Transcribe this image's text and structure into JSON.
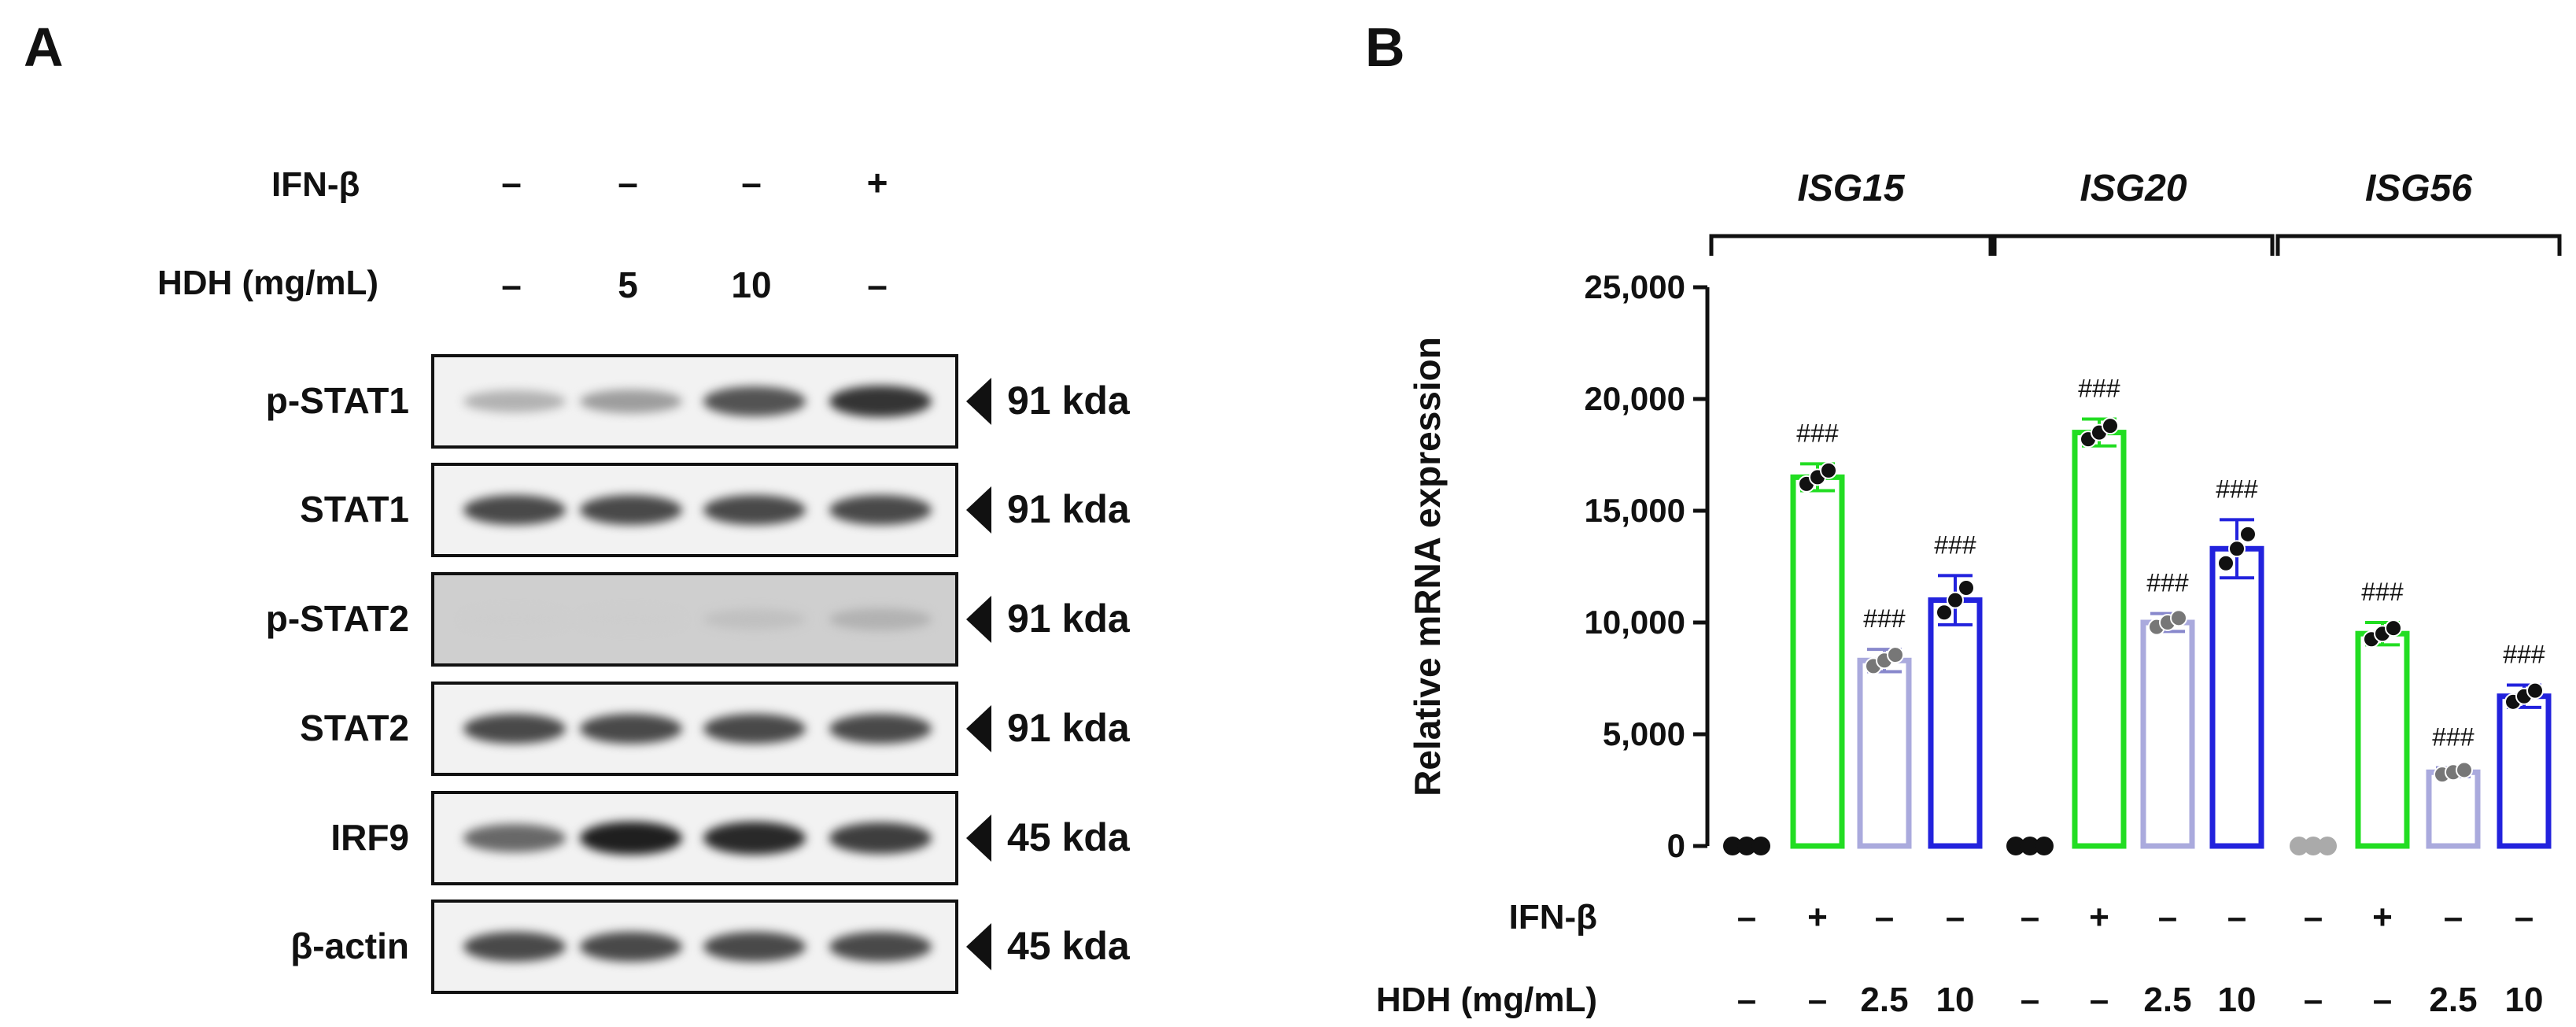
{
  "panel_a": {
    "letter": "A",
    "ifn_label": "IFN-β",
    "ifn_signs": [
      "–",
      "–",
      "–",
      "+"
    ],
    "hdh_label": "HDH (mg/mL)",
    "hdh_values": [
      "–",
      "5",
      "10",
      "–"
    ],
    "rows": [
      {
        "label": "p-STAT1",
        "kda": "91 kda",
        "intensity": [
          0.25,
          0.35,
          0.7,
          0.85
        ]
      },
      {
        "label": "STAT1",
        "kda": "91 kda",
        "intensity": [
          0.75,
          0.75,
          0.75,
          0.75
        ]
      },
      {
        "label": "p-STAT2",
        "kda": "91 kda",
        "intensity": [
          0.12,
          0.12,
          0.18,
          0.25
        ]
      },
      {
        "label": "STAT2",
        "kda": "91 kda",
        "intensity": [
          0.75,
          0.75,
          0.75,
          0.75
        ]
      },
      {
        "label": "IRF9",
        "kda": "45 kda",
        "intensity": [
          0.6,
          0.95,
          0.9,
          0.8
        ]
      },
      {
        "label": "β-actin",
        "kda": "45 kda",
        "intensity": [
          0.75,
          0.75,
          0.75,
          0.75
        ]
      }
    ]
  },
  "panel_b": {
    "letter": "B",
    "chart_data": {
      "type": "bar",
      "ylabel": "Relative mRNA expression",
      "ylim": [
        0,
        25000
      ],
      "yticks": [
        0,
        5000,
        10000,
        15000,
        20000,
        25000
      ],
      "ytick_labels": [
        "0",
        "5,000",
        "10,000",
        "15,000",
        "20,000",
        "25,000"
      ],
      "groups": [
        {
          "name": "ISG15",
          "values": [
            0,
            16500,
            8300,
            11000
          ],
          "errors": [
            0,
            600,
            500,
            1100
          ],
          "annotations": [
            "",
            "###",
            "###",
            "###"
          ]
        },
        {
          "name": "ISG20",
          "values": [
            0,
            18500,
            10000,
            13300
          ],
          "errors": [
            0,
            600,
            400,
            1300
          ],
          "annotations": [
            "",
            "###",
            "###",
            "###"
          ]
        },
        {
          "name": "ISG56",
          "values": [
            0,
            9500,
            3300,
            6700
          ],
          "errors": [
            0,
            500,
            200,
            500
          ],
          "annotations": [
            "",
            "###",
            "###",
            "###"
          ]
        }
      ],
      "bar_colors": [
        "#222222",
        "#22dd22",
        "#aaaadd",
        "#2222dd"
      ],
      "ifn_label": "IFN-β",
      "ifn_signs": [
        "–",
        "+",
        "–",
        "–"
      ],
      "hdh_label": "HDH (mg/mL)",
      "hdh_values": [
        "–",
        "–",
        "2.5",
        "10"
      ]
    }
  }
}
